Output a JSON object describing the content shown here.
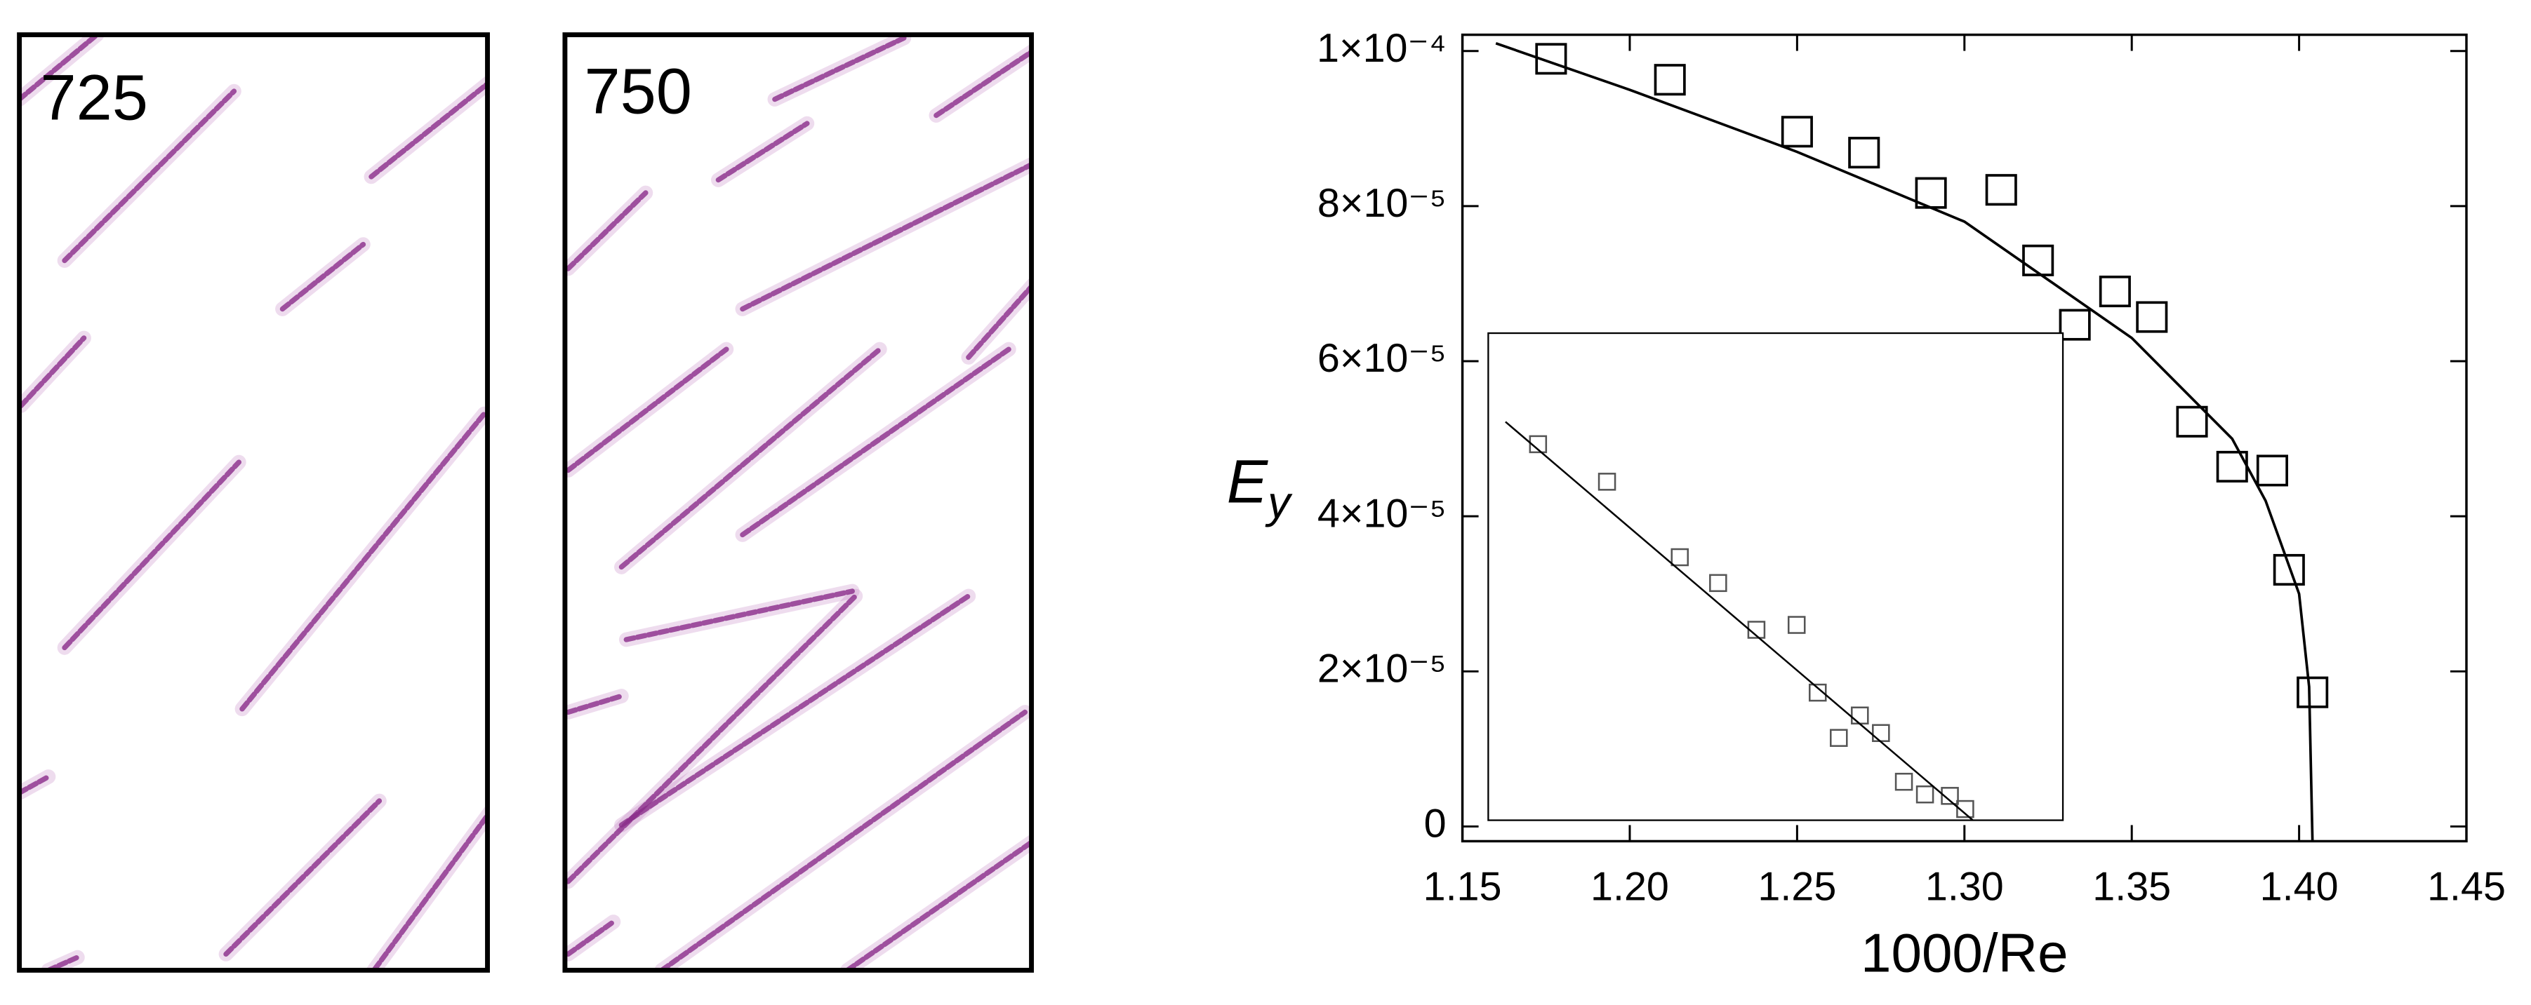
{
  "panels": [
    {
      "label": "725"
    },
    {
      "label": "750"
    }
  ],
  "chart_data": [
    {
      "type": "scatter",
      "xlabel": "1000/Re",
      "ylabel": "E",
      "ylabel_sub": "y",
      "xlim": [
        1.15,
        1.45
      ],
      "ylim": [
        -1.9e-06,
        0.0001021
      ],
      "xticks": [
        1.15,
        {
          "value": 1.2,
          "label": "1.20"
        },
        1.25,
        {
          "value": 1.3,
          "label": "1.30"
        },
        1.35,
        {
          "value": 1.4,
          "label": "1.40"
        },
        1.45
      ],
      "yticks": [
        0,
        {
          "value": 2e-05,
          "label": "2×10⁻⁵"
        },
        {
          "value": 4e-05,
          "label": "4×10⁻⁵"
        },
        {
          "value": 6e-05,
          "label": "6×10⁻⁵"
        },
        {
          "value": 8e-05,
          "label": "8×10⁻⁵"
        },
        {
          "value": 0.0001,
          "label": "1×10⁻⁴"
        }
      ],
      "series": [
        {
          "marker": "square",
          "color": "#000000",
          "x": [
            1.1765,
            1.212,
            1.25,
            1.27,
            1.29,
            1.311,
            1.322,
            1.345,
            1.356,
            1.333,
            1.368,
            1.38,
            1.392,
            1.397,
            1.404
          ],
          "values": [
            9.9e-05,
            9.63e-05,
            8.96e-05,
            8.69e-05,
            8.17e-05,
            8.21e-05,
            7.3e-05,
            6.9e-05,
            6.57e-05,
            6.47e-05,
            5.22e-05,
            4.64e-05,
            4.59e-05,
            3.31e-05,
            1.73e-05
          ]
        },
        {
          "marker": "line",
          "color": "#000000",
          "x": [
            1.16,
            1.2,
            1.25,
            1.3,
            1.35,
            1.38,
            1.39,
            1.4,
            1.403,
            1.404
          ],
          "values": [
            0.000101,
            9.5e-05,
            8.7e-05,
            7.8e-05,
            6.3e-05,
            5e-05,
            4.2e-05,
            3e-05,
            1.8e-05,
            -1.9e-06
          ]
        }
      ]
    },
    {
      "type": "scatter",
      "xlim": [
        1.15,
        1.45
      ],
      "ylim": [
        0,
        1
      ],
      "series": [
        {
          "marker": "square",
          "color": "#555555",
          "x": [
            1.176,
            1.212,
            1.25,
            1.27,
            1.29,
            1.311,
            1.322,
            1.344,
            1.355,
            1.333,
            1.367,
            1.378,
            1.391,
            1.399
          ],
          "values": [
            0.772,
            0.695,
            0.54,
            0.487,
            0.391,
            0.401,
            0.262,
            0.215,
            0.179,
            0.169,
            0.079,
            0.053,
            0.05,
            0.023
          ]
        },
        {
          "marker": "line",
          "color": "#000000",
          "x": [
            1.159,
            1.403
          ],
          "values": [
            0.818,
            0
          ]
        }
      ]
    }
  ]
}
